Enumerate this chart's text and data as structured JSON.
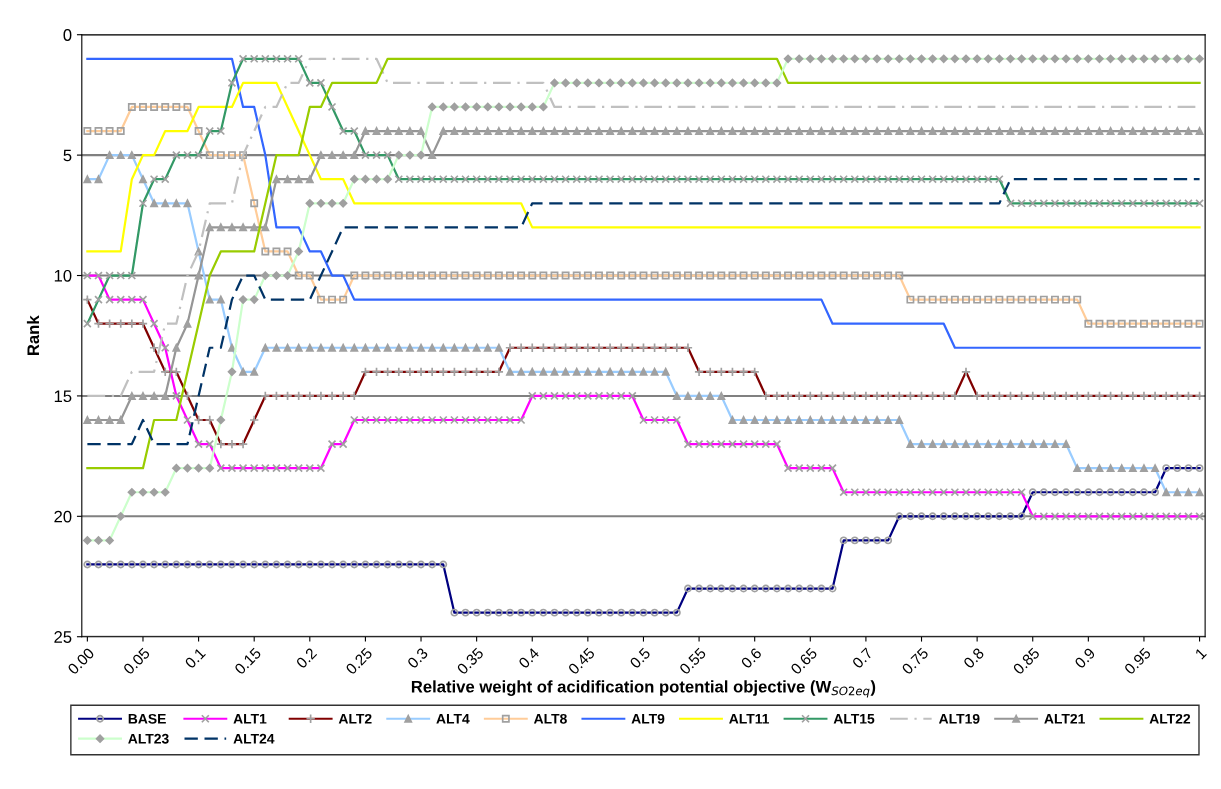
{
  "chart_data": {
    "type": "line",
    "xlabel": "Relative weight of acidification potential objective (W$_{SO2eq}$)",
    "ylabel": "Rank",
    "categories": [
      "0.00",
      null,
      null,
      null,
      null,
      "0.05",
      null,
      null,
      null,
      null,
      "0.1",
      null,
      null,
      null,
      null,
      "0.15",
      null,
      null,
      null,
      null,
      "0.2",
      null,
      null,
      null,
      null,
      "0.25",
      null,
      null,
      null,
      null,
      "0.3",
      null,
      null,
      null,
      null,
      "0.35",
      null,
      null,
      null,
      null,
      "0.4",
      null,
      null,
      null,
      null,
      "0.45",
      null,
      null,
      null,
      null,
      "0.5",
      null,
      null,
      null,
      null,
      "0.55",
      null,
      null,
      null,
      null,
      "0.6",
      null,
      null,
      null,
      null,
      "0.65",
      null,
      null,
      null,
      null,
      "0.7",
      null,
      null,
      null,
      null,
      "0.75",
      null,
      null,
      null,
      null,
      "0.8",
      null,
      null,
      null,
      null,
      "0.85",
      null,
      null,
      null,
      null,
      "0.9",
      null,
      null,
      null,
      null,
      "0.95",
      null,
      null,
      null,
      null,
      "1"
    ],
    "ylim": [
      25,
      0
    ],
    "yticks": [
      0,
      5,
      10,
      15,
      20,
      25
    ],
    "grid": "y",
    "legend": "bottom",
    "series": [
      {
        "name": "BASE",
        "color": "#000080",
        "marker": "circle",
        "line_style": "solid",
        "values": [
          22,
          22,
          22,
          22,
          22,
          22,
          22,
          22,
          22,
          22,
          22,
          22,
          22,
          22,
          22,
          22,
          22,
          22,
          22,
          22,
          22,
          22,
          22,
          22,
          22,
          22,
          22,
          22,
          22,
          22,
          22,
          22,
          22,
          24,
          24,
          24,
          24,
          24,
          24,
          24,
          24,
          24,
          24,
          24,
          24,
          24,
          24,
          24,
          24,
          24,
          24,
          24,
          24,
          24,
          23,
          23,
          23,
          23,
          23,
          23,
          23,
          23,
          23,
          23,
          23,
          23,
          23,
          23,
          21,
          21,
          21,
          21,
          21,
          20,
          20,
          20,
          20,
          20,
          20,
          20,
          20,
          20,
          20,
          20,
          20,
          19,
          19,
          19,
          19,
          19,
          19,
          19,
          19,
          19,
          19,
          19,
          19,
          18,
          18,
          18,
          18
        ]
      },
      {
        "name": "ALT1",
        "color": "#ff00ff",
        "marker": "cross",
        "line_style": "solid",
        "values": [
          10,
          10,
          11,
          11,
          11,
          11,
          12,
          13,
          15,
          16,
          17,
          17,
          18,
          18,
          18,
          18,
          18,
          18,
          18,
          18,
          18,
          18,
          17,
          17,
          16,
          16,
          16,
          16,
          16,
          16,
          16,
          16,
          16,
          16,
          16,
          16,
          16,
          16,
          16,
          16,
          15,
          15,
          15,
          15,
          15,
          15,
          15,
          15,
          15,
          15,
          16,
          16,
          16,
          16,
          17,
          17,
          17,
          17,
          17,
          17,
          17,
          17,
          17,
          18,
          18,
          18,
          18,
          18,
          19,
          19,
          19,
          19,
          19,
          19,
          19,
          19,
          19,
          19,
          19,
          19,
          19,
          19,
          19,
          19,
          19,
          20,
          20,
          20,
          20,
          20,
          20,
          20,
          20,
          20,
          20,
          20,
          20,
          20,
          20,
          20,
          20
        ]
      },
      {
        "name": "ALT2",
        "color": "#800000",
        "marker": "plus",
        "line_style": "solid",
        "values": [
          11,
          12,
          12,
          12,
          12,
          12,
          13,
          14,
          14,
          15,
          16,
          16,
          17,
          17,
          17,
          16,
          15,
          15,
          15,
          15,
          15,
          15,
          15,
          15,
          15,
          14,
          14,
          14,
          14,
          14,
          14,
          14,
          14,
          14,
          14,
          14,
          14,
          14,
          13,
          13,
          13,
          13,
          13,
          13,
          13,
          13,
          13,
          13,
          13,
          13,
          13,
          13,
          13,
          13,
          13,
          14,
          14,
          14,
          14,
          14,
          14,
          15,
          15,
          15,
          15,
          15,
          15,
          15,
          15,
          15,
          15,
          15,
          15,
          15,
          15,
          15,
          15,
          15,
          15,
          14,
          15,
          15,
          15,
          15,
          15,
          15,
          15,
          15,
          15,
          15,
          15,
          15,
          15,
          15,
          15,
          15,
          15,
          15,
          15,
          15,
          15
        ]
      },
      {
        "name": "ALT4",
        "color": "#99ccff",
        "marker": "triangle",
        "line_style": "solid",
        "values": [
          6,
          6,
          5,
          5,
          5,
          6,
          7,
          7,
          7,
          7,
          9,
          11,
          11,
          13,
          14,
          14,
          13,
          13,
          13,
          13,
          13,
          13,
          13,
          13,
          13,
          13,
          13,
          13,
          13,
          13,
          13,
          13,
          13,
          13,
          13,
          13,
          13,
          13,
          14,
          14,
          14,
          14,
          14,
          14,
          14,
          14,
          14,
          14,
          14,
          14,
          14,
          14,
          14,
          15,
          15,
          15,
          15,
          15,
          16,
          16,
          16,
          16,
          16,
          16,
          16,
          16,
          16,
          16,
          16,
          16,
          16,
          16,
          16,
          16,
          17,
          17,
          17,
          17,
          17,
          17,
          17,
          17,
          17,
          17,
          17,
          17,
          17,
          17,
          17,
          18,
          18,
          18,
          18,
          18,
          18,
          18,
          18,
          19,
          19,
          19,
          19
        ]
      },
      {
        "name": "ALT8",
        "color": "#ffcc99",
        "marker": "square",
        "line_style": "solid",
        "values": [
          4,
          4,
          4,
          4,
          3,
          3,
          3,
          3,
          3,
          3,
          4,
          5,
          5,
          5,
          5,
          7,
          9,
          9,
          9,
          10,
          10,
          11,
          11,
          11,
          10,
          10,
          10,
          10,
          10,
          10,
          10,
          10,
          10,
          10,
          10,
          10,
          10,
          10,
          10,
          10,
          10,
          10,
          10,
          10,
          10,
          10,
          10,
          10,
          10,
          10,
          10,
          10,
          10,
          10,
          10,
          10,
          10,
          10,
          10,
          10,
          10,
          10,
          10,
          10,
          10,
          10,
          10,
          10,
          10,
          10,
          10,
          10,
          10,
          10,
          11,
          11,
          11,
          11,
          11,
          11,
          11,
          11,
          11,
          11,
          11,
          11,
          11,
          11,
          11,
          11,
          12,
          12,
          12,
          12,
          12,
          12,
          12,
          12,
          12,
          12,
          12
        ]
      },
      {
        "name": "ALT9",
        "color": "#3366ff",
        "marker": "none",
        "line_style": "solid",
        "values": [
          1,
          1,
          1,
          1,
          1,
          1,
          1,
          1,
          1,
          1,
          1,
          1,
          1,
          1,
          3,
          3,
          5,
          8,
          8,
          8,
          9,
          9,
          10,
          10,
          11,
          11,
          11,
          11,
          11,
          11,
          11,
          11,
          11,
          11,
          11,
          11,
          11,
          11,
          11,
          11,
          11,
          11,
          11,
          11,
          11,
          11,
          11,
          11,
          11,
          11,
          11,
          11,
          11,
          11,
          11,
          11,
          11,
          11,
          11,
          11,
          11,
          11,
          11,
          11,
          11,
          11,
          11,
          12,
          12,
          12,
          12,
          12,
          12,
          12,
          12,
          12,
          12,
          12,
          13,
          13,
          13,
          13,
          13,
          13,
          13,
          13,
          13,
          13,
          13,
          13,
          13,
          13,
          13,
          13,
          13,
          13,
          13,
          13,
          13,
          13,
          13
        ]
      },
      {
        "name": "ALT11",
        "color": "#ffff00",
        "marker": "none",
        "line_style": "solid",
        "values": [
          9,
          9,
          9,
          9,
          6,
          5,
          5,
          4,
          4,
          4,
          3,
          3,
          3,
          3,
          2,
          2,
          2,
          2,
          3,
          4,
          5,
          6,
          6,
          6,
          7,
          7,
          7,
          7,
          7,
          7,
          7,
          7,
          7,
          7,
          7,
          7,
          7,
          7,
          7,
          7,
          8,
          8,
          8,
          8,
          8,
          8,
          8,
          8,
          8,
          8,
          8,
          8,
          8,
          8,
          8,
          8,
          8,
          8,
          8,
          8,
          8,
          8,
          8,
          8,
          8,
          8,
          8,
          8,
          8,
          8,
          8,
          8,
          8,
          8,
          8,
          8,
          8,
          8,
          8,
          8,
          8,
          8,
          8,
          8,
          8,
          8,
          8,
          8,
          8,
          8,
          8,
          8,
          8,
          8,
          8,
          8,
          8,
          8,
          8,
          8,
          8
        ]
      },
      {
        "name": "ALT15",
        "color": "#339966",
        "marker": "cross",
        "line_style": "solid",
        "values": [
          12,
          11,
          10,
          10,
          10,
          7,
          6,
          6,
          5,
          5,
          5,
          4,
          4,
          2,
          1,
          1,
          1,
          1,
          1,
          1,
          2,
          2,
          3,
          4,
          4,
          5,
          5,
          5,
          6,
          6,
          6,
          6,
          6,
          6,
          6,
          6,
          6,
          6,
          6,
          6,
          6,
          6,
          6,
          6,
          6,
          6,
          6,
          6,
          6,
          6,
          6,
          6,
          6,
          6,
          6,
          6,
          6,
          6,
          6,
          6,
          6,
          6,
          6,
          6,
          6,
          6,
          6,
          6,
          6,
          6,
          6,
          6,
          6,
          6,
          6,
          6,
          6,
          6,
          6,
          6,
          6,
          6,
          6,
          7,
          7,
          7,
          7,
          7,
          7,
          7,
          7,
          7,
          7,
          7,
          7,
          7,
          7,
          7,
          7,
          7,
          7
        ]
      },
      {
        "name": "ALT19",
        "color": "#c0c0c0",
        "marker": "none",
        "line_style": "dashdot",
        "values": [
          15,
          15,
          15,
          15,
          14,
          14,
          14,
          12,
          12,
          10,
          9,
          7,
          7,
          7,
          5,
          4,
          3,
          3,
          2,
          2,
          1,
          1,
          1,
          1,
          1,
          1,
          1,
          2,
          2,
          2,
          2,
          2,
          2,
          2,
          2,
          2,
          2,
          2,
          2,
          2,
          2,
          2,
          3,
          3,
          3,
          3,
          3,
          3,
          3,
          3,
          3,
          3,
          3,
          3,
          3,
          3,
          3,
          3,
          3,
          3,
          3,
          3,
          3,
          3,
          3,
          3,
          3,
          3,
          3,
          3,
          3,
          3,
          3,
          3,
          3,
          3,
          3,
          3,
          3,
          3,
          3,
          3,
          3,
          3,
          3,
          3,
          3,
          3,
          3,
          3,
          3,
          3,
          3,
          3,
          3,
          3,
          3,
          3,
          3,
          3,
          3
        ]
      },
      {
        "name": "ALT21",
        "color": "#969696",
        "marker": "triangle",
        "line_style": "solid",
        "values": [
          16,
          16,
          16,
          16,
          15,
          15,
          15,
          15,
          13,
          12,
          10,
          8,
          8,
          8,
          8,
          8,
          8,
          6,
          6,
          6,
          6,
          5,
          5,
          5,
          5,
          4,
          4,
          4,
          4,
          4,
          4,
          5,
          4,
          4,
          4,
          4,
          4,
          4,
          4,
          4,
          4,
          4,
          4,
          4,
          4,
          4,
          4,
          4,
          4,
          4,
          4,
          4,
          4,
          4,
          4,
          4,
          4,
          4,
          4,
          4,
          4,
          4,
          4,
          4,
          4,
          4,
          4,
          4,
          4,
          4,
          4,
          4,
          4,
          4,
          4,
          4,
          4,
          4,
          4,
          4,
          4,
          4,
          4,
          4,
          4,
          4,
          4,
          4,
          4,
          4,
          4,
          4,
          4,
          4,
          4,
          4,
          4,
          4,
          4,
          4,
          4
        ]
      },
      {
        "name": "ALT22",
        "color": "#99cc00",
        "marker": "none",
        "line_style": "solid",
        "values": [
          18,
          18,
          18,
          18,
          18,
          18,
          16,
          16,
          16,
          14,
          12,
          10,
          9,
          9,
          9,
          9,
          7,
          5,
          5,
          5,
          3,
          3,
          2,
          2,
          2,
          2,
          2,
          1,
          1,
          1,
          1,
          1,
          1,
          1,
          1,
          1,
          1,
          1,
          1,
          1,
          1,
          1,
          1,
          1,
          1,
          1,
          1,
          1,
          1,
          1,
          1,
          1,
          1,
          1,
          1,
          1,
          1,
          1,
          1,
          1,
          1,
          1,
          1,
          2,
          2,
          2,
          2,
          2,
          2,
          2,
          2,
          2,
          2,
          2,
          2,
          2,
          2,
          2,
          2,
          2,
          2,
          2,
          2,
          2,
          2,
          2,
          2,
          2,
          2,
          2,
          2,
          2,
          2,
          2,
          2,
          2,
          2,
          2,
          2,
          2,
          2
        ]
      },
      {
        "name": "ALT23",
        "color": "#ccffcc",
        "marker": "diamond",
        "line_style": "solid",
        "values": [
          21,
          21,
          21,
          20,
          19,
          19,
          19,
          19,
          18,
          18,
          18,
          18,
          16,
          14,
          11,
          11,
          10,
          10,
          10,
          9,
          7,
          7,
          7,
          7,
          6,
          6,
          6,
          6,
          5,
          5,
          5,
          3,
          3,
          3,
          3,
          3,
          3,
          3,
          3,
          3,
          3,
          3,
          2,
          2,
          2,
          2,
          2,
          2,
          2,
          2,
          2,
          2,
          2,
          2,
          2,
          2,
          2,
          2,
          2,
          2,
          2,
          2,
          2,
          1,
          1,
          1,
          1,
          1,
          1,
          1,
          1,
          1,
          1,
          1,
          1,
          1,
          1,
          1,
          1,
          1,
          1,
          1,
          1,
          1,
          1,
          1,
          1,
          1,
          1,
          1,
          1,
          1,
          1,
          1,
          1,
          1,
          1,
          1,
          1,
          1,
          1
        ]
      },
      {
        "name": "ALT24",
        "color": "#003366",
        "marker": "none",
        "line_style": "dashed",
        "values": [
          17,
          17,
          17,
          17,
          17,
          16,
          17,
          17,
          17,
          17,
          15,
          13,
          13,
          11,
          10,
          10,
          11,
          11,
          11,
          11,
          11,
          10,
          9,
          8,
          8,
          8,
          8,
          8,
          8,
          8,
          8,
          8,
          8,
          8,
          8,
          8,
          8,
          8,
          8,
          8,
          7,
          7,
          7,
          7,
          7,
          7,
          7,
          7,
          7,
          7,
          7,
          7,
          7,
          7,
          7,
          7,
          7,
          7,
          7,
          7,
          7,
          7,
          7,
          7,
          7,
          7,
          7,
          7,
          7,
          7,
          7,
          7,
          7,
          7,
          7,
          7,
          7,
          7,
          7,
          7,
          7,
          7,
          7,
          6,
          6,
          6,
          6,
          6,
          6,
          6,
          6,
          6,
          6,
          6,
          6,
          6,
          6,
          6,
          6,
          6,
          6
        ]
      }
    ]
  }
}
